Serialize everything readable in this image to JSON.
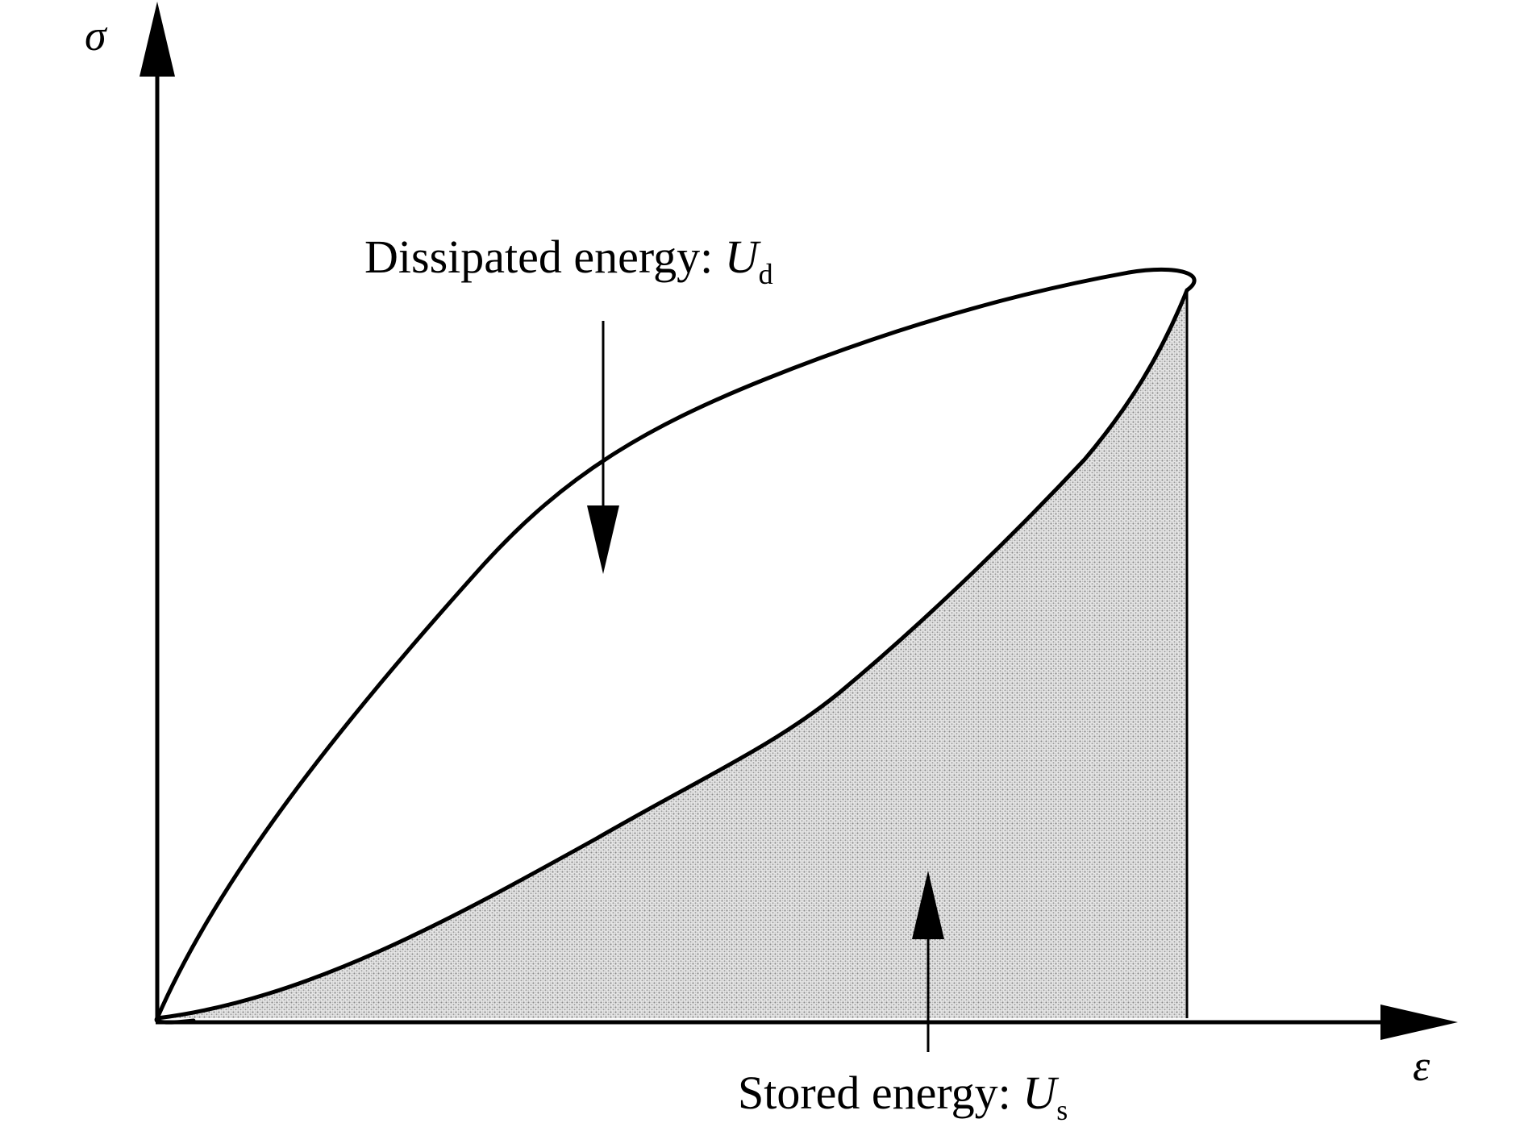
{
  "axes": {
    "y_label": "σ",
    "x_label": "ε"
  },
  "annotations": {
    "dissipated": {
      "text": "Dissipated energy: ",
      "symbol": "U",
      "subscript": "d"
    },
    "stored": {
      "text": "Stored energy: ",
      "symbol": "U",
      "subscript": "s"
    }
  },
  "colors": {
    "line": "#000000",
    "shade": "#b8b8b8",
    "background": "#ffffff"
  }
}
